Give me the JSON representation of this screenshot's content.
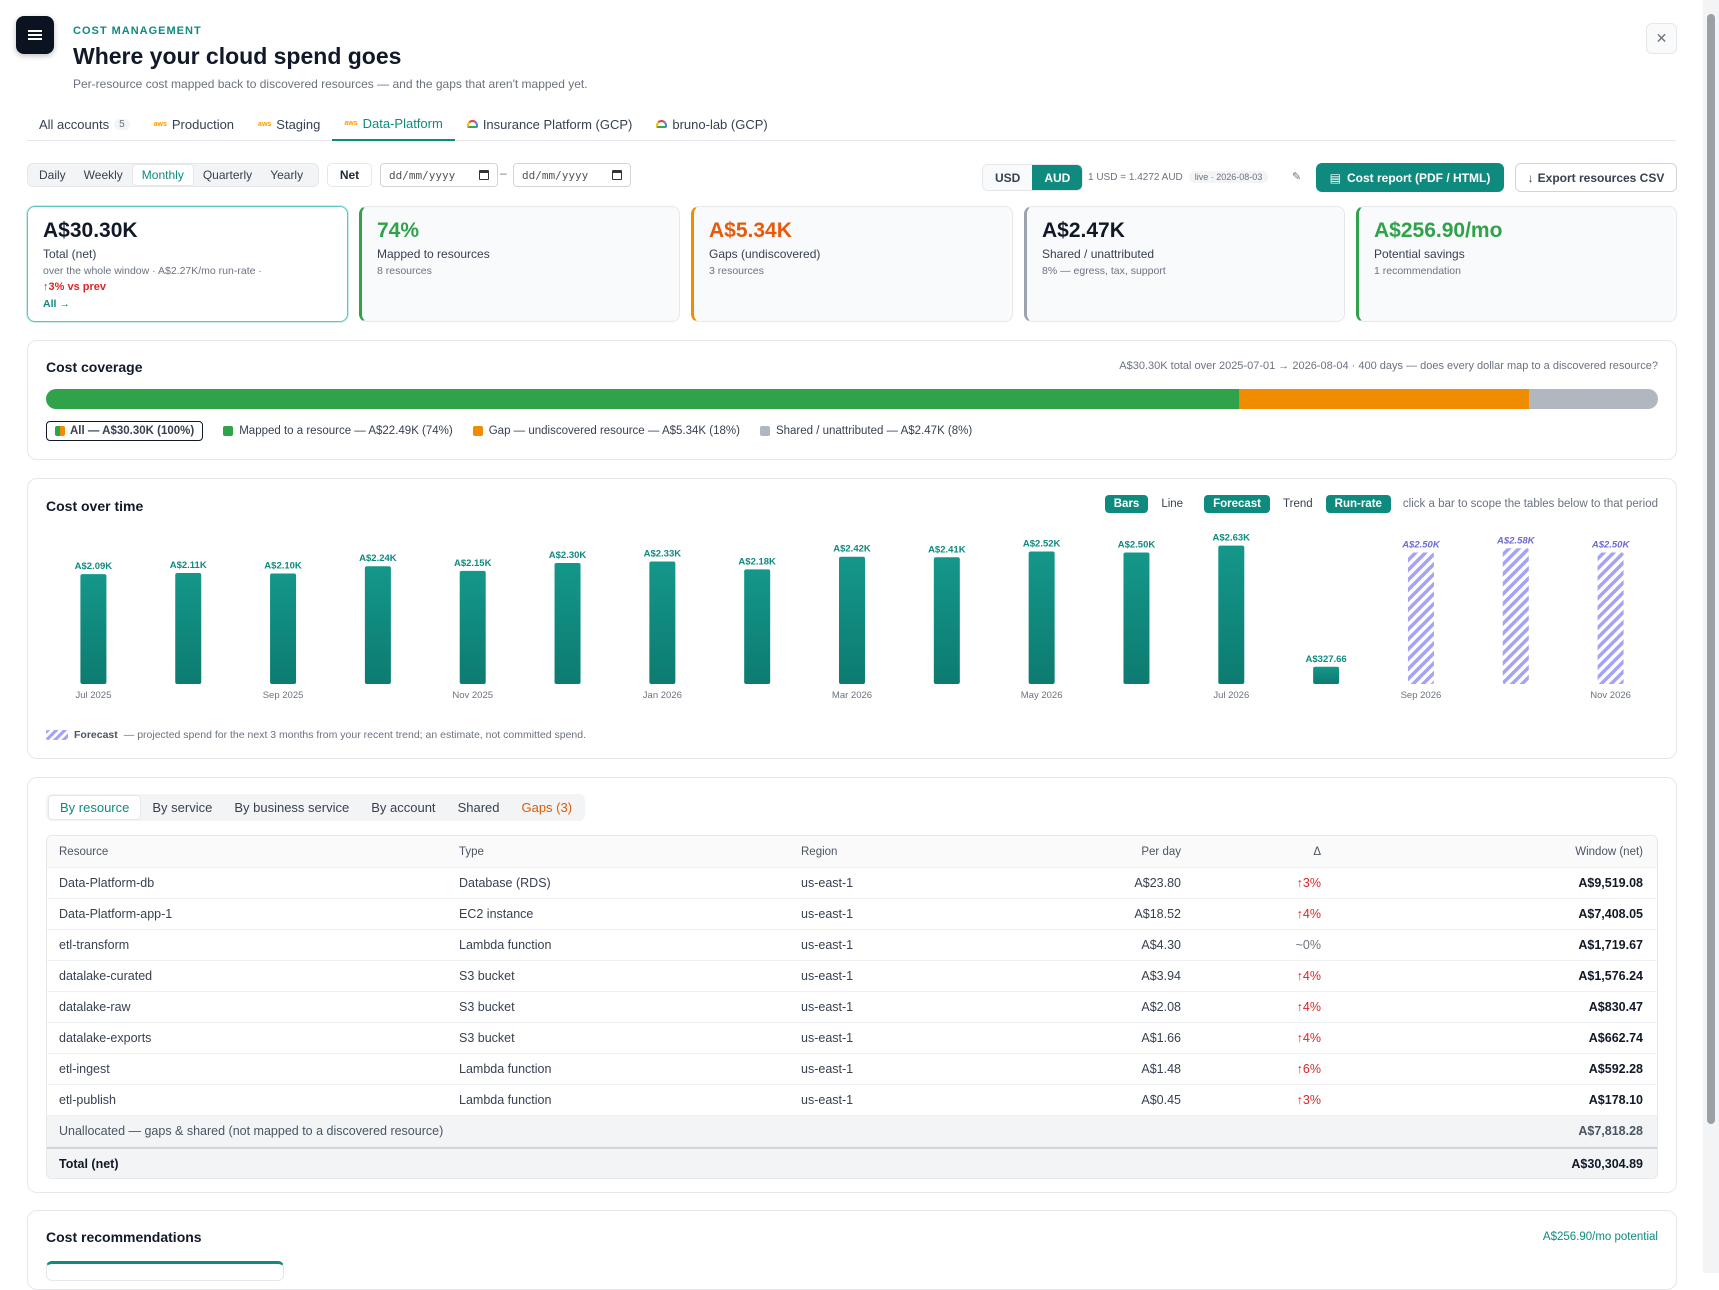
{
  "header": {
    "eyebrow": "COST MANAGEMENT",
    "title": "Where your cloud spend goes",
    "subtitle": "Per-resource cost mapped back to discovered resources — and the gaps that aren't mapped yet.",
    "close": "✕"
  },
  "account_tabs": [
    {
      "label": "All accounts",
      "count": "5",
      "icon": "none"
    },
    {
      "label": "Production",
      "icon": "aws"
    },
    {
      "label": "Staging",
      "icon": "aws"
    },
    {
      "label": "Data-Platform",
      "icon": "aws",
      "active": true
    },
    {
      "label": "Insurance Platform (GCP)",
      "icon": "gcp"
    },
    {
      "label": "bruno-lab (GCP)",
      "icon": "gcp"
    }
  ],
  "aws_badge": "aws",
  "granularity": [
    "Daily",
    "Weekly",
    "Monthly",
    "Quarterly",
    "Yearly"
  ],
  "granularity_selected": "Monthly",
  "net_label": "Net",
  "date_placeholder": "dd/mm/yyyy",
  "date_sep": "–",
  "currency": {
    "usd": "USD",
    "aud": "AUD",
    "selected": "AUD",
    "rate": "1 USD = 1.4272 AUD",
    "live": "live · 2026-08-03"
  },
  "actions": {
    "report": "Cost report (PDF / HTML)",
    "export": "Export resources CSV"
  },
  "kpis": {
    "total": {
      "value": "A$30.30K",
      "label": "Total (net)",
      "note": "over the whole window · A$2.27K/mo run-rate ·",
      "delta": "↑3% vs prev",
      "link": "All →"
    },
    "mapped": {
      "value": "74%",
      "label": "Mapped to resources",
      "note": "8 resources",
      "color": "#2fa24a"
    },
    "gaps": {
      "value": "A$5.34K",
      "label": "Gaps (undiscovered)",
      "note": "3 resources",
      "color": "#e8590c"
    },
    "shared": {
      "value": "A$2.47K",
      "label": "Shared / unattributed",
      "note": "8% — egress, tax, support"
    },
    "savings": {
      "value": "A$256.90/mo",
      "label": "Potential savings",
      "note": "1 recommendation",
      "color": "#2fa24a"
    }
  },
  "coverage": {
    "title": "Cost coverage",
    "note": "A$30.30K total over 2025-07-01 → 2026-08-04 · 400 days — does every dollar map to a discovered resource?",
    "segments": [
      {
        "label": "Mapped to a resource — A$22.49K (74%)",
        "share": 74,
        "color": "#2fa24a"
      },
      {
        "label": "Gap — undiscovered resource — A$5.34K (18%)",
        "share": 18,
        "color": "#f08c00"
      },
      {
        "label": "Shared / unattributed — A$2.47K (8%)",
        "share": 8,
        "color": "#b0b7bf"
      }
    ],
    "all_label": "All — A$30.30K (100%)"
  },
  "cost_over_time": {
    "title": "Cost over time",
    "toggles": [
      {
        "label": "Bars",
        "on": true
      },
      {
        "label": "Line",
        "on": false
      },
      {
        "label": "Forecast",
        "on": true
      },
      {
        "label": "Trend",
        "on": false
      },
      {
        "label": "Run-rate",
        "on": true
      }
    ],
    "hint": "click a bar to scope the tables below to that period",
    "forecast_label": "Forecast",
    "forecast_note": "— projected spend for the next 3 months from your recent trend; an estimate, not committed spend."
  },
  "chart_data": {
    "type": "bar",
    "categories": [
      "Jul 2025",
      "Aug 2025",
      "Sep 2025",
      "Oct 2025",
      "Nov 2025",
      "Dec 2025",
      "Jan 2026",
      "Feb 2026",
      "Mar 2026",
      "Apr 2026",
      "May 2026",
      "Jun 2026",
      "Jul 2026",
      "Aug 2026",
      "Sep 2026",
      "Oct 2026",
      "Nov 2026"
    ],
    "tick_labels": [
      "Jul 2025",
      "",
      "Sep 2025",
      "",
      "Nov 2025",
      "",
      "Jan 2026",
      "",
      "Mar 2026",
      "",
      "May 2026",
      "",
      "Jul 2026",
      "",
      "Sep 2026",
      "",
      "Nov 2026"
    ],
    "values": [
      2090,
      2110,
      2100,
      2240,
      2150,
      2300,
      2330,
      2180,
      2420,
      2410,
      2520,
      2500,
      2630,
      327.66,
      2500,
      2580,
      2500
    ],
    "labels": [
      "A$2.09K",
      "A$2.11K",
      "A$2.10K",
      "A$2.24K",
      "A$2.15K",
      "A$2.30K",
      "A$2.33K",
      "A$2.18K",
      "A$2.42K",
      "A$2.41K",
      "A$2.52K",
      "A$2.50K",
      "A$2.63K",
      "A$327.66",
      "A$2.50K",
      "A$2.58K",
      "A$2.50K"
    ],
    "forecast": [
      false,
      false,
      false,
      false,
      false,
      false,
      false,
      false,
      false,
      false,
      false,
      false,
      false,
      false,
      true,
      true,
      true
    ],
    "ylim": [
      0,
      2700
    ],
    "grid": false,
    "colors": {
      "actual": "#0f8a7f",
      "forecast": "#a5a3f5"
    }
  },
  "breakdown": {
    "tabs": [
      {
        "label": "By resource",
        "on": true
      },
      {
        "label": "By service"
      },
      {
        "label": "By business service"
      },
      {
        "label": "By account"
      },
      {
        "label": "Shared"
      },
      {
        "label": "Gaps (3)",
        "warn": true
      }
    ],
    "columns": [
      "Resource",
      "Type",
      "Region",
      "Per day",
      "Δ",
      "Window (net)"
    ],
    "rows": [
      {
        "resource": "Data-Platform-db",
        "type": "Database (RDS)",
        "region": "us-east-1",
        "per_day": "A$23.80",
        "delta": "↑3%",
        "window": "A$9,519.08"
      },
      {
        "resource": "Data-Platform-app-1",
        "type": "EC2 instance",
        "region": "us-east-1",
        "per_day": "A$18.52",
        "delta": "↑4%",
        "window": "A$7,408.05"
      },
      {
        "resource": "etl-transform",
        "type": "Lambda function",
        "region": "us-east-1",
        "per_day": "A$4.30",
        "delta": "~0%",
        "window": "A$1,719.67"
      },
      {
        "resource": "datalake-curated",
        "type": "S3 bucket",
        "region": "us-east-1",
        "per_day": "A$3.94",
        "delta": "↑4%",
        "window": "A$1,576.24"
      },
      {
        "resource": "datalake-raw",
        "type": "S3 bucket",
        "region": "us-east-1",
        "per_day": "A$2.08",
        "delta": "↑4%",
        "window": "A$830.47"
      },
      {
        "resource": "datalake-exports",
        "type": "S3 bucket",
        "region": "us-east-1",
        "per_day": "A$1.66",
        "delta": "↑4%",
        "window": "A$662.74"
      },
      {
        "resource": "etl-ingest",
        "type": "Lambda function",
        "region": "us-east-1",
        "per_day": "A$1.48",
        "delta": "↑6%",
        "window": "A$592.28"
      },
      {
        "resource": "etl-publish",
        "type": "Lambda function",
        "region": "us-east-1",
        "per_day": "A$0.45",
        "delta": "↑3%",
        "window": "A$178.10"
      }
    ],
    "unallocated": {
      "label": "Unallocated — gaps & shared (not mapped to a discovered resource)",
      "value": "A$7,818.28"
    },
    "total": {
      "label": "Total (net)",
      "value": "A$30,304.89"
    }
  },
  "recommendations": {
    "title": "Cost recommendations",
    "potential": "A$256.90/mo potential"
  }
}
